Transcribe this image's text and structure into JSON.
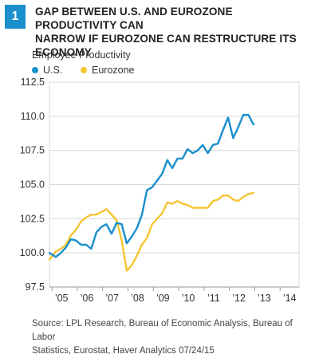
{
  "figure_number": "1",
  "title_line1": "GAP BETWEEN U.S. AND EUROZONE PRODUCTIVITY CAN",
  "title_line2": "NARROW IF EUROZONE CAN RESTRUCTURE ITS ECONOMY",
  "subtitle": "Employee Productivity",
  "source_line1": "Source: LPL Research, Bureau of Economic Analysis, Bureau of Labor",
  "source_line2": "Statistics, Eurostat, Haver Analytics   07/24/15",
  "colors": {
    "us": "#1a8fcc",
    "eurozone": "#f4c531",
    "badge": "#1a8fcc",
    "grid": "#d9d9d9"
  },
  "chart_data": {
    "type": "line",
    "ylim": [
      97.5,
      112.5
    ],
    "yticks": [
      "97.5",
      "100.0",
      "102.5",
      "105.0",
      "107.5",
      "110.0",
      "112.5"
    ],
    "xlim": [
      2004.9,
      2014.75
    ],
    "xticks": [
      {
        "label": "’05",
        "x": 2005
      },
      {
        "label": "’06",
        "x": 2006
      },
      {
        "label": "’07",
        "x": 2007
      },
      {
        "label": "’08",
        "x": 2008
      },
      {
        "label": "’09",
        "x": 2009
      },
      {
        "label": "’10",
        "x": 2010
      },
      {
        "label": "’11",
        "x": 2011
      },
      {
        "label": "’12",
        "x": 2012
      },
      {
        "label": "’13",
        "x": 2013
      },
      {
        "label": "’14",
        "x": 2014
      }
    ],
    "grid": true,
    "legend_position": "top-left",
    "series": [
      {
        "name": "U.S.",
        "points": [
          [
            2004.9,
            100.0
          ],
          [
            2005.15,
            99.7
          ],
          [
            2005.35,
            100.0
          ],
          [
            2005.55,
            100.4
          ],
          [
            2005.75,
            101.0
          ],
          [
            2005.95,
            100.9
          ],
          [
            2006.15,
            100.6
          ],
          [
            2006.35,
            100.6
          ],
          [
            2006.55,
            100.3
          ],
          [
            2006.75,
            101.5
          ],
          [
            2006.95,
            101.9
          ],
          [
            2007.15,
            102.1
          ],
          [
            2007.35,
            101.4
          ],
          [
            2007.55,
            102.2
          ],
          [
            2007.75,
            102.1
          ],
          [
            2007.95,
            100.7
          ],
          [
            2008.15,
            101.2
          ],
          [
            2008.35,
            101.8
          ],
          [
            2008.55,
            102.8
          ],
          [
            2008.75,
            104.6
          ],
          [
            2008.95,
            104.8
          ],
          [
            2009.15,
            105.3
          ],
          [
            2009.35,
            105.8
          ],
          [
            2009.55,
            106.8
          ],
          [
            2009.75,
            106.2
          ],
          [
            2009.95,
            106.9
          ],
          [
            2010.15,
            106.9
          ],
          [
            2010.35,
            107.6
          ],
          [
            2010.55,
            107.3
          ],
          [
            2010.75,
            107.5
          ],
          [
            2010.95,
            107.9
          ],
          [
            2011.15,
            107.3
          ],
          [
            2011.35,
            107.9
          ],
          [
            2011.55,
            108.0
          ],
          [
            2011.75,
            109.0
          ],
          [
            2011.95,
            109.9
          ],
          [
            2012.15,
            108.4
          ],
          [
            2012.35,
            109.2
          ],
          [
            2012.55,
            110.1
          ],
          [
            2012.75,
            110.1
          ],
          [
            2012.95,
            109.4
          ]
        ]
      },
      {
        "name": "Eurozone",
        "points": [
          [
            2004.9,
            99.5
          ],
          [
            2005.15,
            100.1
          ],
          [
            2005.35,
            100.3
          ],
          [
            2005.55,
            100.6
          ],
          [
            2005.75,
            101.3
          ],
          [
            2005.95,
            101.7
          ],
          [
            2006.15,
            102.3
          ],
          [
            2006.35,
            102.6
          ],
          [
            2006.55,
            102.8
          ],
          [
            2006.75,
            102.8
          ],
          [
            2006.95,
            103.0
          ],
          [
            2007.15,
            103.2
          ],
          [
            2007.35,
            102.8
          ],
          [
            2007.55,
            102.4
          ],
          [
            2007.75,
            100.9
          ],
          [
            2007.95,
            98.7
          ],
          [
            2008.15,
            99.1
          ],
          [
            2008.35,
            99.8
          ],
          [
            2008.55,
            100.6
          ],
          [
            2008.75,
            101.1
          ],
          [
            2008.95,
            102.1
          ],
          [
            2009.15,
            102.5
          ],
          [
            2009.35,
            102.9
          ],
          [
            2009.55,
            103.7
          ],
          [
            2009.75,
            103.6
          ],
          [
            2009.95,
            103.8
          ],
          [
            2010.15,
            103.6
          ],
          [
            2010.35,
            103.5
          ],
          [
            2010.55,
            103.3
          ],
          [
            2010.75,
            103.3
          ],
          [
            2010.95,
            103.3
          ],
          [
            2011.15,
            103.3
          ],
          [
            2011.35,
            103.8
          ],
          [
            2011.55,
            103.9
          ],
          [
            2011.75,
            104.2
          ],
          [
            2011.95,
            104.2
          ],
          [
            2012.15,
            103.9
          ],
          [
            2012.35,
            103.8
          ],
          [
            2012.55,
            104.1
          ],
          [
            2012.75,
            104.3
          ],
          [
            2012.95,
            104.4
          ]
        ]
      }
    ]
  }
}
